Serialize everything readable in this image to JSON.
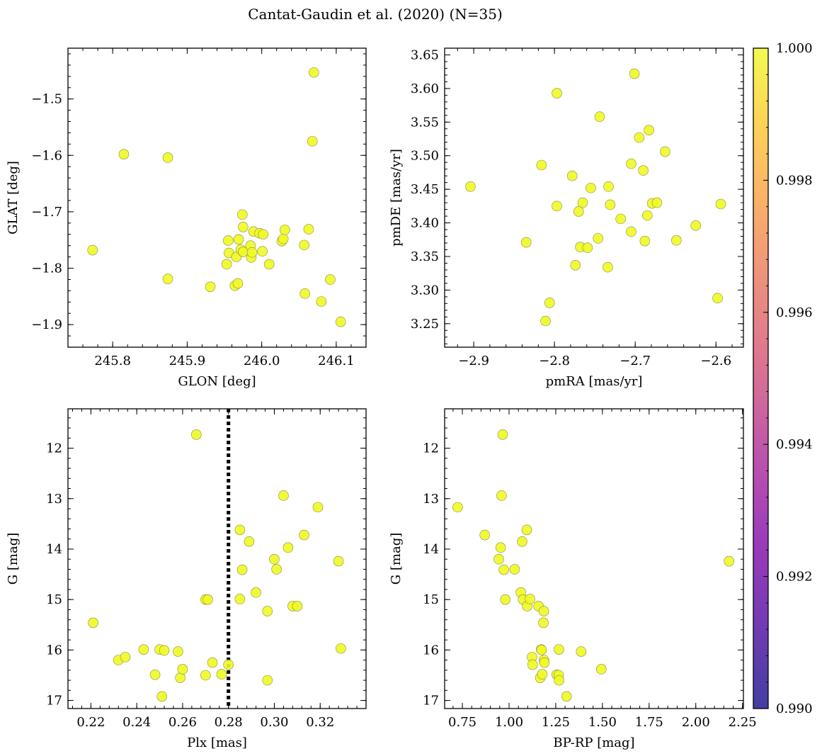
{
  "suptitle": "Cantat-Gaudin et al. (2020) (N=35)",
  "colors": {
    "point": "#f0f921",
    "point_edge": "#8a8a4a",
    "refline": "#000000"
  },
  "colorbar": {
    "min": 0.99,
    "max": 1.0,
    "ticks": [
      0.99,
      0.992,
      0.994,
      0.996,
      0.998,
      1.0
    ],
    "tick_labels": [
      "0.990",
      "0.992",
      "0.994",
      "0.996",
      "0.998",
      "1.000"
    ],
    "colormap": "plasma"
  },
  "chart_data": [
    {
      "type": "scatter",
      "xlabel": "GLON [deg]",
      "ylabel": "GLAT [deg]",
      "xlim": [
        245.74,
        246.14
      ],
      "ylim": [
        -1.94,
        -1.41
      ],
      "xticks": [
        245.8,
        245.9,
        246.0,
        246.1
      ],
      "xtick_labels": [
        "245.8",
        "245.9",
        "246.0",
        "246.1"
      ],
      "yticks": [
        -1.5,
        -1.6,
        -1.7,
        -1.8,
        -1.9
      ],
      "ytick_labels": [
        "−1.5",
        "−1.6",
        "−1.7",
        "−1.8",
        "−1.9"
      ],
      "invert_y": false,
      "points": [
        [
          245.773,
          -1.768
        ],
        [
          245.815,
          -1.598
        ],
        [
          245.874,
          -1.604
        ],
        [
          245.874,
          -1.819
        ],
        [
          245.931,
          -1.833
        ],
        [
          245.953,
          -1.793
        ],
        [
          245.955,
          -1.751
        ],
        [
          245.956,
          -1.773
        ],
        [
          245.964,
          -1.831
        ],
        [
          245.966,
          -1.78
        ],
        [
          245.968,
          -1.827
        ],
        [
          245.969,
          -1.749
        ],
        [
          245.972,
          -1.767
        ],
        [
          245.974,
          -1.705
        ],
        [
          245.975,
          -1.727
        ],
        [
          245.975,
          -1.771
        ],
        [
          245.985,
          -1.76
        ],
        [
          245.986,
          -1.781
        ],
        [
          245.987,
          -1.772
        ],
        [
          245.989,
          -1.735
        ],
        [
          245.997,
          -1.738
        ],
        [
          246.001,
          -1.77
        ],
        [
          246.002,
          -1.74
        ],
        [
          246.01,
          -1.793
        ],
        [
          246.027,
          -1.752
        ],
        [
          246.029,
          -1.748
        ],
        [
          246.031,
          -1.732
        ],
        [
          246.057,
          -1.759
        ],
        [
          246.058,
          -1.845
        ],
        [
          246.063,
          -1.731
        ],
        [
          246.068,
          -1.575
        ],
        [
          246.07,
          -1.453
        ],
        [
          246.08,
          -1.859
        ],
        [
          246.092,
          -1.82
        ],
        [
          246.106,
          -1.895
        ]
      ]
    },
    {
      "type": "scatter",
      "xlabel": "pmRA [mas/yr]",
      "ylabel": "pmDE [mas/yr]",
      "xlim": [
        -2.936,
        -2.566
      ],
      "ylim": [
        3.215,
        3.66
      ],
      "xticks": [
        -2.9,
        -2.8,
        -2.7,
        -2.6
      ],
      "xtick_labels": [
        "−2.9",
        "−2.8",
        "−2.7",
        "−2.6"
      ],
      "yticks": [
        3.25,
        3.3,
        3.35,
        3.4,
        3.45,
        3.5,
        3.55,
        3.6,
        3.65
      ],
      "ytick_labels": [
        "3.25",
        "3.30",
        "3.35",
        "3.40",
        "3.45",
        "3.50",
        "3.55",
        "3.60",
        "3.65"
      ],
      "invert_y": false,
      "points": [
        [
          -2.904,
          3.454
        ],
        [
          -2.835,
          3.371
        ],
        [
          -2.816,
          3.486
        ],
        [
          -2.811,
          3.254
        ],
        [
          -2.806,
          3.281
        ],
        [
          -2.797,
          3.593
        ],
        [
          -2.797,
          3.425
        ],
        [
          -2.778,
          3.47
        ],
        [
          -2.774,
          3.337
        ],
        [
          -2.77,
          3.417
        ],
        [
          -2.768,
          3.364
        ],
        [
          -2.765,
          3.43
        ],
        [
          -2.759,
          3.363
        ],
        [
          -2.755,
          3.452
        ],
        [
          -2.746,
          3.377
        ],
        [
          -2.744,
          3.558
        ],
        [
          -2.734,
          3.334
        ],
        [
          -2.733,
          3.454
        ],
        [
          -2.731,
          3.427
        ],
        [
          -2.718,
          3.406
        ],
        [
          -2.705,
          3.387
        ],
        [
          -2.705,
          3.488
        ],
        [
          -2.701,
          3.622
        ],
        [
          -2.695,
          3.527
        ],
        [
          -2.69,
          3.478
        ],
        [
          -2.688,
          3.373
        ],
        [
          -2.685,
          3.411
        ],
        [
          -2.683,
          3.538
        ],
        [
          -2.679,
          3.429
        ],
        [
          -2.673,
          3.43
        ],
        [
          -2.663,
          3.506
        ],
        [
          -2.649,
          3.374
        ],
        [
          -2.625,
          3.396
        ],
        [
          -2.598,
          3.288
        ],
        [
          -2.594,
          3.428
        ]
      ]
    },
    {
      "type": "scatter",
      "xlabel": "Plx [mas]",
      "ylabel": "G [mag]",
      "xlim": [
        0.21,
        0.34
      ],
      "ylim": [
        17.16,
        11.22
      ],
      "xticks": [
        0.22,
        0.24,
        0.26,
        0.28,
        0.3,
        0.32
      ],
      "xtick_labels": [
        "0.22",
        "0.24",
        "0.26",
        "0.28",
        "0.30",
        "0.32"
      ],
      "yticks": [
        12,
        13,
        14,
        15,
        16,
        17
      ],
      "ytick_labels": [
        "12",
        "13",
        "14",
        "15",
        "16",
        "17"
      ],
      "invert_y": true,
      "vline_x": 0.28,
      "points": [
        [
          0.221,
          15.46
        ],
        [
          0.232,
          16.2
        ],
        [
          0.235,
          16.14
        ],
        [
          0.243,
          15.99
        ],
        [
          0.248,
          16.49
        ],
        [
          0.25,
          15.99
        ],
        [
          0.251,
          16.92
        ],
        [
          0.252,
          16.01
        ],
        [
          0.258,
          16.03
        ],
        [
          0.259,
          16.55
        ],
        [
          0.26,
          16.38
        ],
        [
          0.266,
          11.73
        ],
        [
          0.27,
          16.5
        ],
        [
          0.27,
          15.0
        ],
        [
          0.271,
          15.0
        ],
        [
          0.273,
          16.25
        ],
        [
          0.277,
          16.48
        ],
        [
          0.28,
          16.29
        ],
        [
          0.285,
          13.62
        ],
        [
          0.285,
          14.99
        ],
        [
          0.286,
          14.41
        ],
        [
          0.289,
          13.85
        ],
        [
          0.292,
          14.86
        ],
        [
          0.297,
          15.23
        ],
        [
          0.297,
          16.6
        ],
        [
          0.3,
          14.2
        ],
        [
          0.301,
          14.4
        ],
        [
          0.304,
          12.94
        ],
        [
          0.306,
          13.97
        ],
        [
          0.308,
          15.13
        ],
        [
          0.31,
          15.13
        ],
        [
          0.313,
          13.72
        ],
        [
          0.319,
          13.17
        ],
        [
          0.328,
          14.24
        ],
        [
          0.329,
          15.97
        ]
      ]
    },
    {
      "type": "scatter",
      "xlabel": "BP-RP [mag]",
      "ylabel": "G [mag]",
      "xlim": [
        0.655,
        2.255
      ],
      "ylim": [
        17.16,
        11.22
      ],
      "xticks": [
        0.75,
        1.0,
        1.25,
        1.5,
        1.75,
        2.0,
        2.25
      ],
      "xtick_labels": [
        "0.75",
        "1.00",
        "1.25",
        "1.50",
        "1.75",
        "2.00",
        "2.25"
      ],
      "yticks": [
        12,
        13,
        14,
        15,
        16,
        17
      ],
      "ytick_labels": [
        "12",
        "13",
        "14",
        "15",
        "16",
        "17"
      ],
      "invert_y": true,
      "points": [
        [
          0.725,
          13.17
        ],
        [
          0.87,
          13.72
        ],
        [
          0.945,
          14.2
        ],
        [
          0.955,
          13.97
        ],
        [
          0.96,
          12.94
        ],
        [
          0.966,
          11.73
        ],
        [
          0.972,
          14.41
        ],
        [
          0.98,
          15.0
        ],
        [
          1.03,
          14.4
        ],
        [
          1.063,
          14.86
        ],
        [
          1.07,
          13.85
        ],
        [
          1.075,
          15.0
        ],
        [
          1.095,
          13.62
        ],
        [
          1.097,
          15.13
        ],
        [
          1.112,
          14.99
        ],
        [
          1.123,
          16.14
        ],
        [
          1.126,
          16.29
        ],
        [
          1.158,
          15.13
        ],
        [
          1.167,
          16.55
        ],
        [
          1.172,
          15.99
        ],
        [
          1.174,
          16.0
        ],
        [
          1.178,
          16.48
        ],
        [
          1.184,
          15.46
        ],
        [
          1.186,
          15.23
        ],
        [
          1.187,
          16.2
        ],
        [
          1.189,
          16.25
        ],
        [
          1.255,
          16.49
        ],
        [
          1.266,
          16.5
        ],
        [
          1.267,
          15.99
        ],
        [
          1.268,
          16.6
        ],
        [
          1.308,
          16.92
        ],
        [
          1.386,
          16.03
        ],
        [
          1.494,
          16.38
        ],
        [
          2.178,
          14.24
        ]
      ]
    }
  ]
}
